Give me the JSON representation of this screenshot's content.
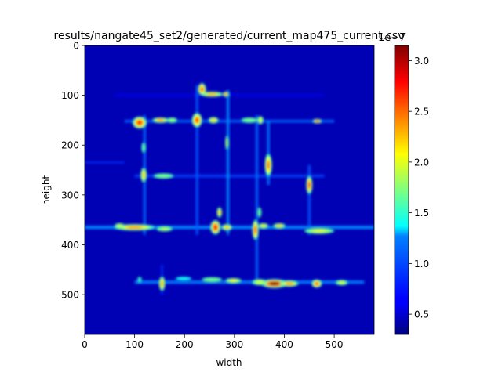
{
  "chart_data": {
    "type": "heatmap",
    "title": "results/nangate45_set2/generated/current_map475_current.csv",
    "xlabel": "width",
    "ylabel": "height",
    "xlim": [
      0,
      580
    ],
    "ylim": [
      580,
      0
    ],
    "x_ticks": [
      "0",
      "100",
      "200",
      "300",
      "400",
      "500"
    ],
    "y_ticks": [
      "0",
      "100",
      "200",
      "300",
      "400",
      "500"
    ],
    "colormap": "jet",
    "colorbar": {
      "range": [
        0.3,
        3.15
      ],
      "ticks": [
        "0.5",
        "1.0",
        "1.5",
        "2.0",
        "2.5",
        "3.0"
      ],
      "offset_text": "1e−7"
    },
    "background_level": 0.45,
    "hotspots": [
      {
        "x": 235,
        "y": 88,
        "w": 8,
        "h": 12,
        "v": 2.6
      },
      {
        "x": 255,
        "y": 98,
        "w": 22,
        "h": 5,
        "v": 2.3
      },
      {
        "x": 283,
        "y": 98,
        "w": 6,
        "h": 5,
        "v": 2.6
      },
      {
        "x": 225,
        "y": 150,
        "w": 10,
        "h": 14,
        "v": 2.6
      },
      {
        "x": 258,
        "y": 150,
        "w": 10,
        "h": 6,
        "v": 2.2
      },
      {
        "x": 110,
        "y": 155,
        "w": 14,
        "h": 12,
        "v": 2.7
      },
      {
        "x": 152,
        "y": 150,
        "w": 16,
        "h": 5,
        "v": 2.4
      },
      {
        "x": 175,
        "y": 150,
        "w": 10,
        "h": 5,
        "v": 1.8
      },
      {
        "x": 330,
        "y": 150,
        "w": 16,
        "h": 5,
        "v": 1.7
      },
      {
        "x": 352,
        "y": 150,
        "w": 6,
        "h": 8,
        "v": 2.0
      },
      {
        "x": 466,
        "y": 152,
        "w": 9,
        "h": 4,
        "v": 2.6
      },
      {
        "x": 285,
        "y": 195,
        "w": 3,
        "h": 14,
        "v": 1.9
      },
      {
        "x": 118,
        "y": 205,
        "w": 4,
        "h": 10,
        "v": 1.6
      },
      {
        "x": 368,
        "y": 240,
        "w": 7,
        "h": 22,
        "v": 2.5
      },
      {
        "x": 118,
        "y": 260,
        "w": 6,
        "h": 14,
        "v": 2.2
      },
      {
        "x": 158,
        "y": 262,
        "w": 20,
        "h": 5,
        "v": 1.7
      },
      {
        "x": 450,
        "y": 280,
        "w": 6,
        "h": 18,
        "v": 2.7
      },
      {
        "x": 262,
        "y": 365,
        "w": 10,
        "h": 14,
        "v": 2.8
      },
      {
        "x": 270,
        "y": 335,
        "w": 5,
        "h": 10,
        "v": 2.2
      },
      {
        "x": 285,
        "y": 365,
        "w": 10,
        "h": 6,
        "v": 2.3
      },
      {
        "x": 100,
        "y": 365,
        "w": 40,
        "h": 6,
        "v": 2.4
      },
      {
        "x": 70,
        "y": 362,
        "w": 10,
        "h": 5,
        "v": 2.0
      },
      {
        "x": 160,
        "y": 368,
        "w": 16,
        "h": 5,
        "v": 1.9
      },
      {
        "x": 342,
        "y": 370,
        "w": 6,
        "h": 20,
        "v": 2.6
      },
      {
        "x": 358,
        "y": 362,
        "w": 10,
        "h": 5,
        "v": 2.1
      },
      {
        "x": 390,
        "y": 362,
        "w": 12,
        "h": 5,
        "v": 2.2
      },
      {
        "x": 350,
        "y": 335,
        "w": 4,
        "h": 10,
        "v": 1.6
      },
      {
        "x": 470,
        "y": 372,
        "w": 30,
        "h": 6,
        "v": 2.0
      },
      {
        "x": 380,
        "y": 478,
        "w": 26,
        "h": 9,
        "v": 3.1
      },
      {
        "x": 410,
        "y": 478,
        "w": 18,
        "h": 6,
        "v": 2.4
      },
      {
        "x": 350,
        "y": 475,
        "w": 14,
        "h": 6,
        "v": 2.0
      },
      {
        "x": 298,
        "y": 472,
        "w": 16,
        "h": 5,
        "v": 2.1
      },
      {
        "x": 255,
        "y": 470,
        "w": 20,
        "h": 5,
        "v": 1.7
      },
      {
        "x": 155,
        "y": 478,
        "w": 6,
        "h": 14,
        "v": 2.3
      },
      {
        "x": 465,
        "y": 478,
        "w": 10,
        "h": 8,
        "v": 2.6
      },
      {
        "x": 515,
        "y": 476,
        "w": 12,
        "h": 5,
        "v": 2.0
      },
      {
        "x": 110,
        "y": 470,
        "w": 4,
        "h": 6,
        "v": 1.5
      },
      {
        "x": 198,
        "y": 468,
        "w": 16,
        "h": 4,
        "v": 1.4
      }
    ],
    "lines": [
      {
        "orient": "h",
        "pos": 365,
        "from": 0,
        "to": 580,
        "w": 4,
        "v": 1.05
      },
      {
        "orient": "h",
        "pos": 475,
        "from": 100,
        "to": 560,
        "w": 4,
        "v": 1.0
      },
      {
        "orient": "h",
        "pos": 152,
        "from": 80,
        "to": 500,
        "w": 3,
        "v": 0.95
      },
      {
        "orient": "h",
        "pos": 262,
        "from": 100,
        "to": 480,
        "w": 3,
        "v": 0.85
      },
      {
        "orient": "h",
        "pos": 100,
        "from": 60,
        "to": 480,
        "w": 2,
        "v": 0.7
      },
      {
        "orient": "h",
        "pos": 235,
        "from": 0,
        "to": 80,
        "w": 2,
        "v": 0.8
      },
      {
        "orient": "v",
        "pos": 120,
        "from": 140,
        "to": 380,
        "w": 3,
        "v": 0.95
      },
      {
        "orient": "v",
        "pos": 225,
        "from": 80,
        "to": 380,
        "w": 3,
        "v": 0.9
      },
      {
        "orient": "v",
        "pos": 287,
        "from": 90,
        "to": 380,
        "w": 3,
        "v": 1.05
      },
      {
        "orient": "v",
        "pos": 345,
        "from": 140,
        "to": 470,
        "w": 3,
        "v": 0.95
      },
      {
        "orient": "v",
        "pos": 368,
        "from": 150,
        "to": 280,
        "w": 3,
        "v": 1.0
      },
      {
        "orient": "v",
        "pos": 450,
        "from": 240,
        "to": 380,
        "w": 3,
        "v": 0.9
      },
      {
        "orient": "v",
        "pos": 155,
        "from": 440,
        "to": 500,
        "w": 2,
        "v": 0.8
      }
    ],
    "grid": false,
    "legend": "colorbar-right"
  }
}
